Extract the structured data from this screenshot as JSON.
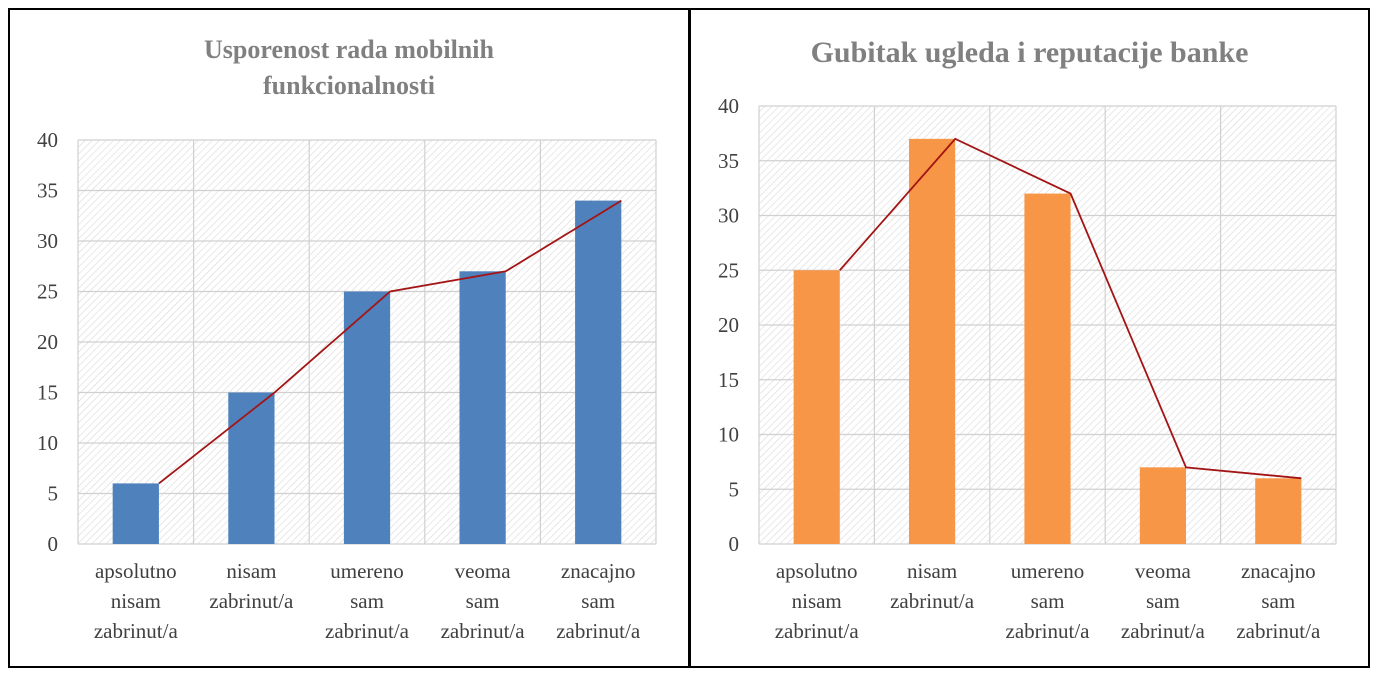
{
  "chart_data": [
    {
      "type": "bar",
      "title": [
        "Usporenost rada mobilnih",
        "funkcionalnosti"
      ],
      "categories": [
        [
          "apsolutno",
          "nisam",
          "zabrinut/a"
        ],
        [
          "nisam",
          "zabrinut/a"
        ],
        [
          "umereno",
          "sam",
          "zabrinut/a"
        ],
        [
          "veoma",
          "sam",
          "zabrinut/a"
        ],
        [
          "znacajno",
          "sam",
          "zabrinut/a"
        ]
      ],
      "values": [
        6,
        15,
        25,
        27,
        34
      ],
      "yticks": [
        "0",
        "5",
        "10",
        "15",
        "20",
        "25",
        "30",
        "35",
        "40"
      ],
      "ylim": [
        0,
        40
      ],
      "bar_color": "#4F81BD",
      "line_color": "#A31515",
      "trend_line": true,
      "grid": true,
      "xlabel": "",
      "ylabel": ""
    },
    {
      "type": "bar",
      "title": [
        "Gubitak ugleda i reputacije banke"
      ],
      "categories": [
        [
          "apsolutno",
          "nisam",
          "zabrinut/a"
        ],
        [
          "nisam",
          "zabrinut/a"
        ],
        [
          "umereno",
          "sam",
          "zabrinut/a"
        ],
        [
          "veoma",
          "sam",
          "zabrinut/a"
        ],
        [
          "znacajno",
          "sam",
          "zabrinut/a"
        ]
      ],
      "values": [
        25,
        37,
        32,
        7,
        6
      ],
      "yticks": [
        "0",
        "5",
        "10",
        "15",
        "20",
        "25",
        "30",
        "35",
        "40"
      ],
      "ylim": [
        0,
        40
      ],
      "bar_color": "#F79646",
      "line_color": "#A31515",
      "trend_line": true,
      "grid": true,
      "xlabel": "",
      "ylabel": ""
    }
  ]
}
